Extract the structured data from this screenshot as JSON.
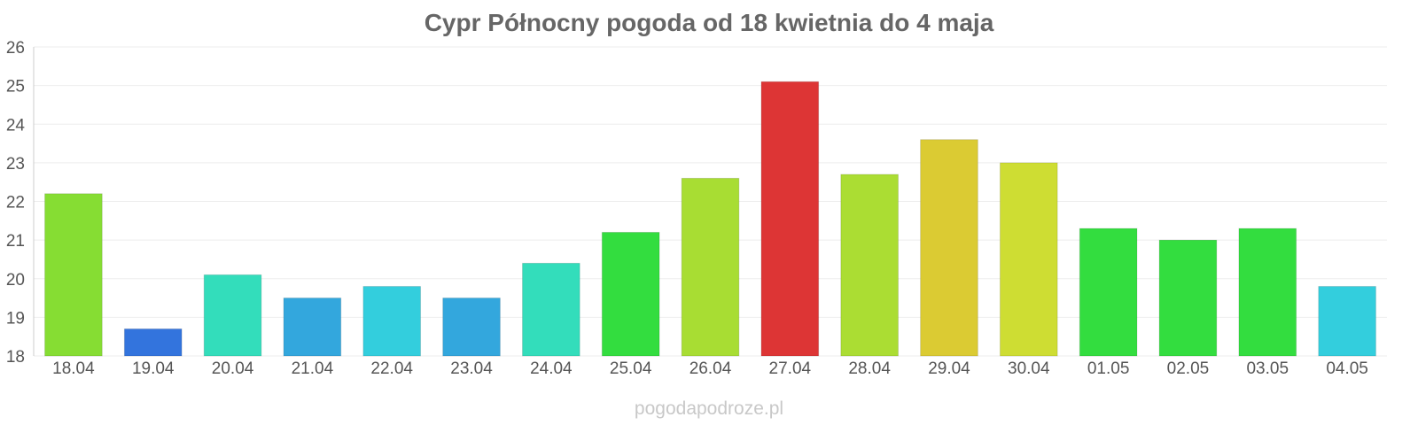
{
  "chart_data": {
    "type": "bar",
    "title": "Cypr Północny pogoda od 18 kwietnia do 4 maja",
    "categories": [
      "18.04",
      "19.04",
      "20.04",
      "21.04",
      "22.04",
      "23.04",
      "24.04",
      "25.04",
      "26.04",
      "27.04",
      "28.04",
      "29.04",
      "30.04",
      "01.05",
      "02.05",
      "03.05",
      "04.05"
    ],
    "values": [
      22.2,
      18.7,
      20.1,
      19.5,
      19.8,
      19.5,
      20.4,
      21.2,
      22.6,
      25.1,
      22.7,
      23.6,
      23.0,
      21.3,
      21.0,
      21.3,
      19.8
    ],
    "colors": [
      "#86dd33",
      "#3374dd",
      "#33ddbb",
      "#33a7dd",
      "#33cedd",
      "#33a7dd",
      "#33ddbb",
      "#33dd3f",
      "#a8dd33",
      "#dd3535",
      "#abdd33",
      "#dbcb33",
      "#cedd33",
      "#33dd3f",
      "#33dd3f",
      "#33dd3f",
      "#33cedd"
    ],
    "ylim": [
      18,
      26
    ],
    "yticks": [
      18,
      19,
      20,
      21,
      22,
      23,
      24,
      25,
      26
    ],
    "grid": true,
    "xlabel": "",
    "ylabel": ""
  },
  "watermark": "pogodapodroze.pl"
}
